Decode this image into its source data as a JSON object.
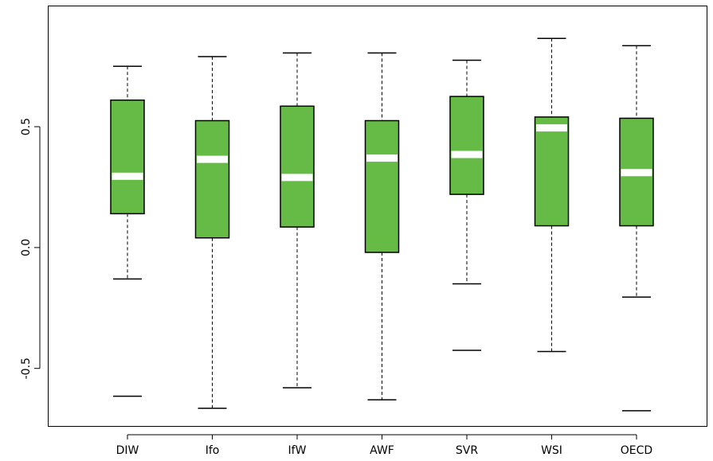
{
  "chart_data": {
    "type": "boxplot",
    "title": "",
    "xlabel": "",
    "ylabel": "",
    "ylim": [
      -0.72,
      0.95
    ],
    "yticks": [
      -0.5,
      0.0,
      0.5
    ],
    "ytick_labels": [
      "-0.5",
      "0.0",
      "0.5"
    ],
    "grid": false,
    "colors": {
      "box_fill": "#66BB46",
      "median": "#ffffff",
      "whisker": "#000000",
      "axis": "#000000"
    },
    "categories": [
      "DIW",
      "Ifo",
      "IfW",
      "AWF",
      "SVR",
      "WSI",
      "OECD"
    ],
    "boxes": [
      {
        "name": "DIW",
        "whisker_low": -0.13,
        "q1": 0.14,
        "median": 0.295,
        "q3": 0.61,
        "whisker_high": 0.75,
        "outliers": [
          -0.615
        ]
      },
      {
        "name": "Ifo",
        "whisker_low": -0.665,
        "q1": 0.04,
        "median": 0.365,
        "q3": 0.525,
        "whisker_high": 0.79,
        "outliers": []
      },
      {
        "name": "IfW",
        "whisker_low": -0.58,
        "q1": 0.085,
        "median": 0.29,
        "q3": 0.585,
        "whisker_high": 0.805,
        "outliers": []
      },
      {
        "name": "AWF",
        "whisker_low": -0.63,
        "q1": -0.02,
        "median": 0.37,
        "q3": 0.525,
        "whisker_high": 0.805,
        "outliers": []
      },
      {
        "name": "SVR",
        "whisker_low": -0.15,
        "q1": 0.22,
        "median": 0.385,
        "q3": 0.625,
        "whisker_high": 0.775,
        "outliers": [
          -0.425
        ]
      },
      {
        "name": "WSI",
        "whisker_low": -0.43,
        "q1": 0.09,
        "median": 0.495,
        "q3": 0.54,
        "whisker_high": 0.865,
        "outliers": []
      },
      {
        "name": "OECD",
        "whisker_low": -0.205,
        "q1": 0.09,
        "median": 0.31,
        "q3": 0.535,
        "whisker_high": 0.835,
        "outliers": [
          -0.675
        ]
      }
    ]
  }
}
